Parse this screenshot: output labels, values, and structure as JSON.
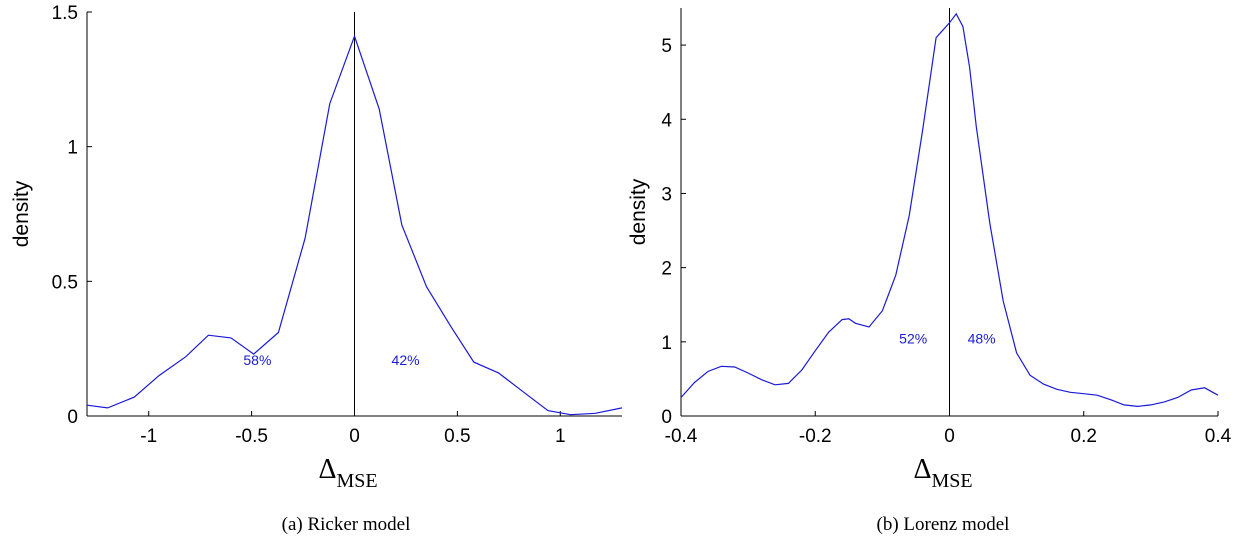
{
  "colors": {
    "series": "#1a1ad6",
    "axis": "#000000"
  },
  "chart_data": [
    {
      "type": "line",
      "caption": "(a) Ricker model",
      "xlabel": "Δ",
      "xlabel_subscript": "MSE",
      "ylabel": "density",
      "xlim": [
        -1.3,
        1.3
      ],
      "ylim": [
        0,
        1.5
      ],
      "xticks": [
        -1,
        -0.5,
        0,
        0.5,
        1
      ],
      "xtick_labels": [
        "-1",
        "-0.5",
        "0",
        "0.5",
        "1"
      ],
      "yticks": [
        0,
        0.5,
        1,
        1.5
      ],
      "ytick_labels": [
        "0",
        "0.5",
        "1",
        "1.5"
      ],
      "vline_x": 0,
      "annotations": [
        {
          "text": "58%",
          "x": -0.54,
          "y": 0.19
        },
        {
          "text": "42%",
          "x": 0.18,
          "y": 0.19
        }
      ],
      "series": [
        {
          "x": [
            -1.3,
            -1.2,
            -1.07,
            -0.95,
            -0.82,
            -0.71,
            -0.6,
            -0.49,
            -0.37,
            -0.24,
            -0.12,
            0,
            0.12,
            0.23,
            0.35,
            0.47,
            0.58,
            0.7,
            0.82,
            0.94,
            1.05,
            1.17,
            1.3
          ],
          "y": [
            0.04,
            0.03,
            0.07,
            0.15,
            0.22,
            0.3,
            0.29,
            0.23,
            0.31,
            0.66,
            1.16,
            1.41,
            1.14,
            0.71,
            0.48,
            0.33,
            0.2,
            0.16,
            0.09,
            0.02,
            0.005,
            0.01,
            0.03
          ]
        }
      ]
    },
    {
      "type": "line",
      "caption": "(b) Lorenz model",
      "xlabel": "Δ",
      "xlabel_subscript": "MSE",
      "ylabel": "density",
      "xlim": [
        -0.4,
        0.4
      ],
      "ylim": [
        0,
        5.5
      ],
      "xticks": [
        -0.4,
        -0.2,
        0,
        0.2,
        0.4
      ],
      "xtick_labels": [
        "-0.4",
        "-0.2",
        "0",
        "0.2",
        "0.4"
      ],
      "yticks": [
        0,
        1,
        2,
        3,
        4,
        5
      ],
      "ytick_labels": [
        "0",
        "1",
        "2",
        "3",
        "4",
        "5"
      ],
      "vline_x": 0,
      "annotations": [
        {
          "text": "52%",
          "x": -0.075,
          "y": 0.98
        },
        {
          "text": "48%",
          "x": 0.027,
          "y": 0.98
        }
      ],
      "series": [
        {
          "x": [
            -0.4,
            -0.38,
            -0.36,
            -0.34,
            -0.32,
            -0.3,
            -0.28,
            -0.26,
            -0.24,
            -0.22,
            -0.2,
            -0.18,
            -0.16,
            -0.15,
            -0.14,
            -0.12,
            -0.1,
            -0.08,
            -0.06,
            -0.04,
            -0.02,
            0,
            0.01,
            0.02,
            0.03,
            0.04,
            0.06,
            0.08,
            0.1,
            0.12,
            0.14,
            0.16,
            0.18,
            0.2,
            0.22,
            0.24,
            0.26,
            0.28,
            0.3,
            0.32,
            0.34,
            0.36,
            0.38,
            0.4
          ],
          "y": [
            0.25,
            0.45,
            0.6,
            0.67,
            0.66,
            0.58,
            0.49,
            0.42,
            0.44,
            0.62,
            0.88,
            1.13,
            1.3,
            1.31,
            1.25,
            1.2,
            1.42,
            1.9,
            2.7,
            3.85,
            5.1,
            5.3,
            5.42,
            5.25,
            4.7,
            3.9,
            2.6,
            1.55,
            0.85,
            0.55,
            0.43,
            0.36,
            0.32,
            0.3,
            0.28,
            0.22,
            0.15,
            0.13,
            0.15,
            0.19,
            0.25,
            0.35,
            0.38,
            0.28
          ]
        }
      ]
    }
  ]
}
